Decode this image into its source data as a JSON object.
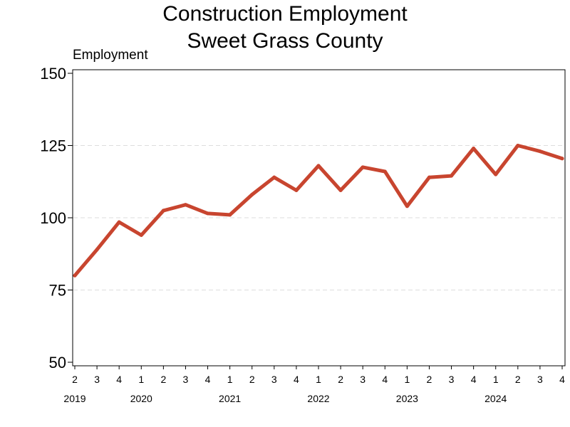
{
  "chart_data": {
    "type": "line",
    "title": [
      "Construction Employment",
      "Sweet Grass County"
    ],
    "ylabel": "Employment",
    "xlabel": "",
    "ylim": [
      50,
      150
    ],
    "yticks": [
      50,
      75,
      100,
      125,
      150
    ],
    "grid": "horizontal-dashed",
    "legend": "none",
    "color": "#c8452f",
    "quarter_labels": [
      "2",
      "3",
      "4",
      "1",
      "2",
      "3",
      "4",
      "1",
      "2",
      "3",
      "4",
      "1",
      "2",
      "3",
      "4",
      "1",
      "2",
      "3",
      "4",
      "1",
      "2",
      "3",
      "4"
    ],
    "year_labels": [
      {
        "label": "2019",
        "at_index": 0
      },
      {
        "label": "2020",
        "at_index": 3
      },
      {
        "label": "2021",
        "at_index": 7
      },
      {
        "label": "2022",
        "at_index": 11
      },
      {
        "label": "2023",
        "at_index": 15
      },
      {
        "label": "2024",
        "at_index": 19
      }
    ],
    "series": [
      {
        "x": [
          "2019 Q2",
          "2019 Q3",
          "2019 Q4",
          "2020 Q1",
          "2020 Q2",
          "2020 Q3",
          "2020 Q4",
          "2021 Q1",
          "2021 Q2",
          "2021 Q3",
          "2021 Q4",
          "2022 Q1",
          "2022 Q2",
          "2022 Q3",
          "2022 Q4",
          "2023 Q1",
          "2023 Q2",
          "2023 Q3",
          "2023 Q4",
          "2024 Q1",
          "2024 Q2",
          "2024 Q3",
          "2024 Q4"
        ],
        "values": [
          80,
          89,
          98.5,
          94,
          102.5,
          104.5,
          101.5,
          101,
          108,
          114,
          109.5,
          118,
          109.5,
          117.5,
          116,
          104,
          114,
          114.5,
          124,
          115,
          125,
          123,
          120.5
        ]
      }
    ]
  }
}
